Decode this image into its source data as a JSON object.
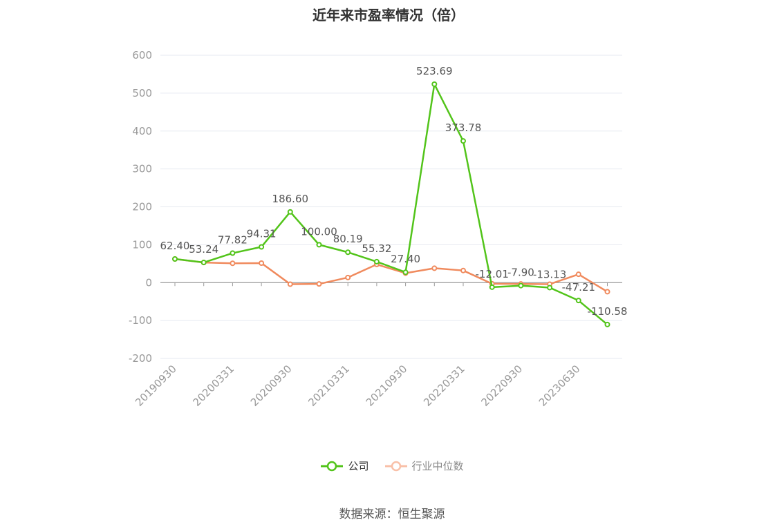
{
  "chart_data": {
    "type": "line",
    "title": "近年来市盈率情况（倍）",
    "source": "数据来源：恒生聚源",
    "x_tick_labels": [
      "20190930",
      "20200331",
      "20200930",
      "20210331",
      "20210930",
      "20220331",
      "20220930",
      "20230630"
    ],
    "ylim": [
      -200,
      600
    ],
    "yticks": [
      600,
      500,
      400,
      300,
      200,
      100,
      0,
      -100,
      -200
    ],
    "grid": true,
    "legend_position": "bottom",
    "points_count": 16,
    "series": [
      {
        "name": "公司",
        "color": "#52c41a",
        "values": [
          62.4,
          53.24,
          77.82,
          94.31,
          186.6,
          100.0,
          80.19,
          55.32,
          27.4,
          523.69,
          373.78,
          -12.01,
          -7.9,
          -13.13,
          -47.21,
          -110.58
        ],
        "labels": [
          "62.40",
          "53.24",
          "77.82",
          "94.31",
          "186.60",
          "100.00",
          "80.19",
          "55.32",
          "27.40",
          "523.69",
          "373.78",
          "-12.01",
          "-7.90",
          "-13.13",
          "-47.21",
          "-110.58"
        ]
      },
      {
        "name": "行业中位数",
        "color": "#f08a5d",
        "values": [
          62.4,
          53.0,
          51.0,
          51.5,
          -4.0,
          -3.5,
          13.5,
          48.0,
          25.0,
          38.0,
          32.0,
          -3.0,
          -3.5,
          -4.0,
          22.0,
          -24.0
        ]
      }
    ]
  }
}
